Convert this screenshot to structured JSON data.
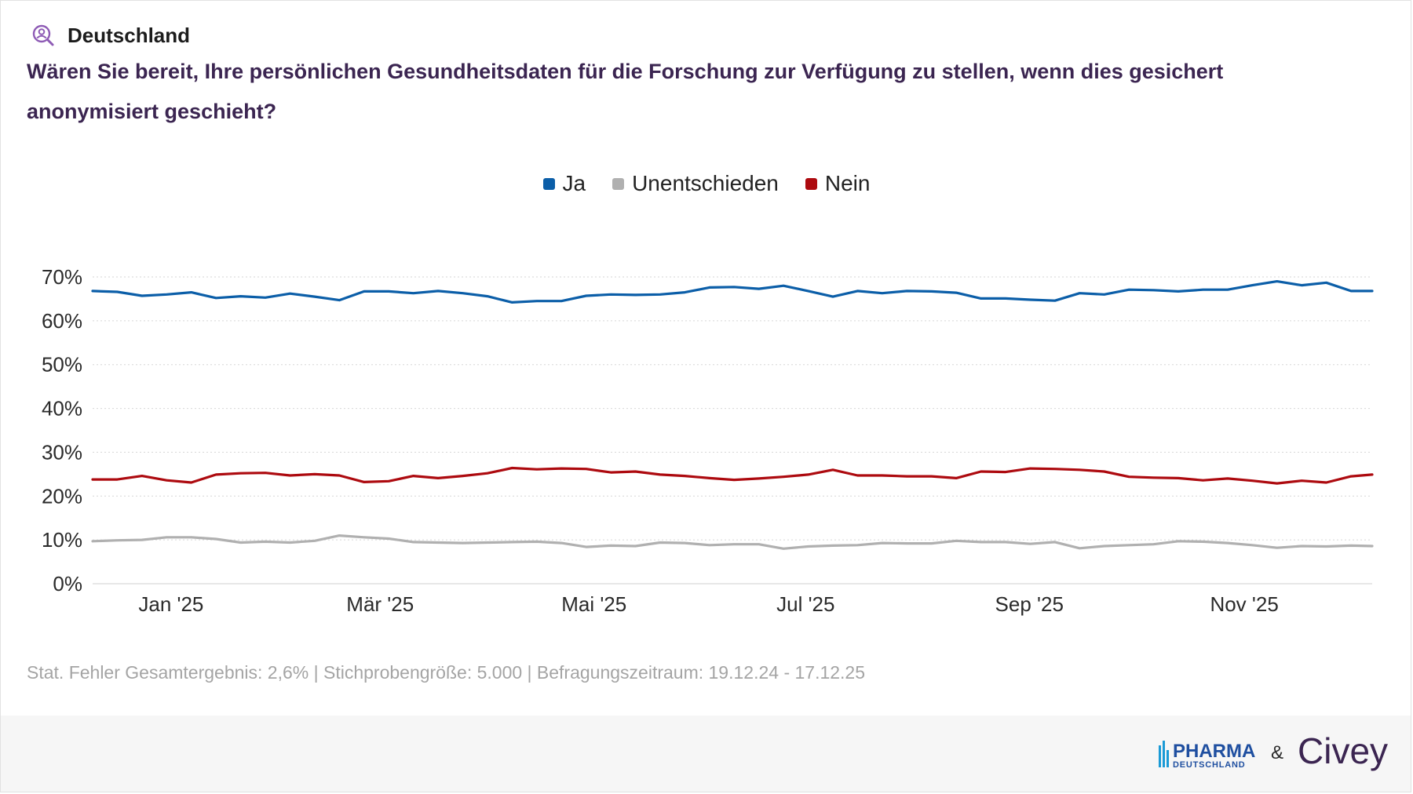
{
  "header": {
    "region": "Deutschland",
    "region_icon": "search-person-icon",
    "question": "Wären Sie bereit, Ihre persönlichen Gesundheitsdaten für die Forschung zur Verfügung zu stellen, wenn dies gesichert anonymisiert geschieht?"
  },
  "footnote": "Stat. Fehler Gesamtergebnis: 2,6% | Stichprobengröße: 5.000 | Befragungszeitraum: 19.12.24 - 17.12.25",
  "footer": {
    "logo_pharma": "PHARMA",
    "logo_pharma_sub": "DEUTSCHLAND",
    "ampersand": "&",
    "logo_civey": "Civey"
  },
  "colors": {
    "ja": "#0b5ea8",
    "unentschieden": "#b0b0b0",
    "nein": "#ad0a0f",
    "title": "#3b2551",
    "icon": "#8e5bb5"
  },
  "chart_data": {
    "type": "line",
    "x_start": "2024-12-19",
    "x_end": "2025-12-17",
    "x_ticks": [
      {
        "date": "2025-01-01",
        "label": "Jan '25"
      },
      {
        "date": "2025-03-01",
        "label": "Mär '25"
      },
      {
        "date": "2025-05-01",
        "label": "Mai '25"
      },
      {
        "date": "2025-07-01",
        "label": "Jul '25"
      },
      {
        "date": "2025-09-01",
        "label": "Sep '25"
      },
      {
        "date": "2025-11-01",
        "label": "Nov '25"
      }
    ],
    "y_ticks": [
      0,
      10,
      20,
      30,
      40,
      50,
      60,
      70
    ],
    "y_tick_labels": [
      "0%",
      "10%",
      "20%",
      "30%",
      "40%",
      "50%",
      "60%",
      "70%"
    ],
    "ylim": [
      0,
      70
    ],
    "grid": true,
    "legend_position": "top-center",
    "x": [
      "2024-12-19",
      "2024-12-26",
      "2025-01-02",
      "2025-01-09",
      "2025-01-16",
      "2025-01-23",
      "2025-01-30",
      "2025-02-06",
      "2025-02-13",
      "2025-02-20",
      "2025-02-27",
      "2025-03-06",
      "2025-03-13",
      "2025-03-20",
      "2025-03-27",
      "2025-04-03",
      "2025-04-10",
      "2025-04-17",
      "2025-04-24",
      "2025-05-01",
      "2025-05-08",
      "2025-05-15",
      "2025-05-22",
      "2025-05-29",
      "2025-06-05",
      "2025-06-12",
      "2025-06-19",
      "2025-06-26",
      "2025-07-03",
      "2025-07-10",
      "2025-07-17",
      "2025-07-24",
      "2025-07-31",
      "2025-08-07",
      "2025-08-14",
      "2025-08-21",
      "2025-08-28",
      "2025-09-04",
      "2025-09-11",
      "2025-09-18",
      "2025-09-25",
      "2025-10-02",
      "2025-10-09",
      "2025-10-16",
      "2025-10-23",
      "2025-10-30",
      "2025-11-06",
      "2025-11-13",
      "2025-11-20",
      "2025-11-27",
      "2025-12-04",
      "2025-12-11",
      "2025-12-17"
    ],
    "series": [
      {
        "name": "Ja",
        "values": [
          66.8,
          66.6,
          65.7,
          66.0,
          66.5,
          65.2,
          65.6,
          65.3,
          66.2,
          65.5,
          64.7,
          66.7,
          66.7,
          66.3,
          66.8,
          66.3,
          65.6,
          64.2,
          64.5,
          64.5,
          65.7,
          66.0,
          65.9,
          66.0,
          66.5,
          67.6,
          67.7,
          67.3,
          68.0,
          66.8,
          65.5,
          66.8,
          66.3,
          66.8,
          66.7,
          66.4,
          65.1,
          65.1,
          64.8,
          64.6,
          66.3,
          66.0,
          67.1,
          67.0,
          66.7,
          67.1,
          67.1,
          68.1,
          69.0,
          68.1,
          68.7,
          66.8,
          66.8
        ]
      },
      {
        "name": "Unentschieden",
        "values": [
          9.7,
          9.9,
          10.0,
          10.6,
          10.6,
          10.2,
          9.4,
          9.6,
          9.4,
          9.8,
          11.0,
          10.6,
          10.3,
          9.5,
          9.4,
          9.3,
          9.4,
          9.5,
          9.6,
          9.3,
          8.4,
          8.7,
          8.6,
          9.4,
          9.3,
          8.8,
          9.0,
          9.0,
          8.0,
          8.5,
          8.7,
          8.8,
          9.3,
          9.2,
          9.2,
          9.8,
          9.5,
          9.5,
          9.1,
          9.5,
          8.1,
          8.6,
          8.8,
          9.0,
          9.7,
          9.6,
          9.3,
          8.8,
          8.2,
          8.6,
          8.5,
          8.7,
          8.6
        ]
      },
      {
        "name": "Nein",
        "values": [
          23.8,
          23.8,
          24.6,
          23.6,
          23.1,
          24.9,
          25.2,
          25.3,
          24.7,
          25.0,
          24.7,
          23.2,
          23.4,
          24.6,
          24.1,
          24.6,
          25.2,
          26.4,
          26.1,
          26.3,
          26.2,
          25.4,
          25.6,
          24.9,
          24.6,
          24.1,
          23.7,
          24.0,
          24.4,
          24.9,
          26.0,
          24.7,
          24.7,
          24.5,
          24.5,
          24.1,
          25.6,
          25.5,
          26.3,
          26.2,
          26.0,
          25.6,
          24.4,
          24.2,
          24.1,
          23.6,
          24.0,
          23.5,
          22.9,
          23.5,
          23.1,
          24.5,
          24.9
        ]
      }
    ]
  }
}
